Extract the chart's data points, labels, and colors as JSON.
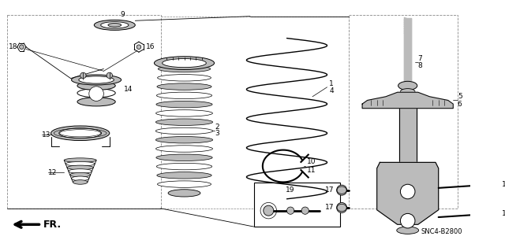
{
  "bg_color": "#ffffff",
  "line_color": "#000000",
  "gray": "#888888",
  "lgray": "#bbbbbb",
  "dgray": "#555555",
  "footer_text": "SNC4-B2800",
  "fr_label": "FR.",
  "figsize": [
    6.4,
    3.19
  ],
  "dpi": 100,
  "font_size": 6.5,
  "title_font": 7
}
